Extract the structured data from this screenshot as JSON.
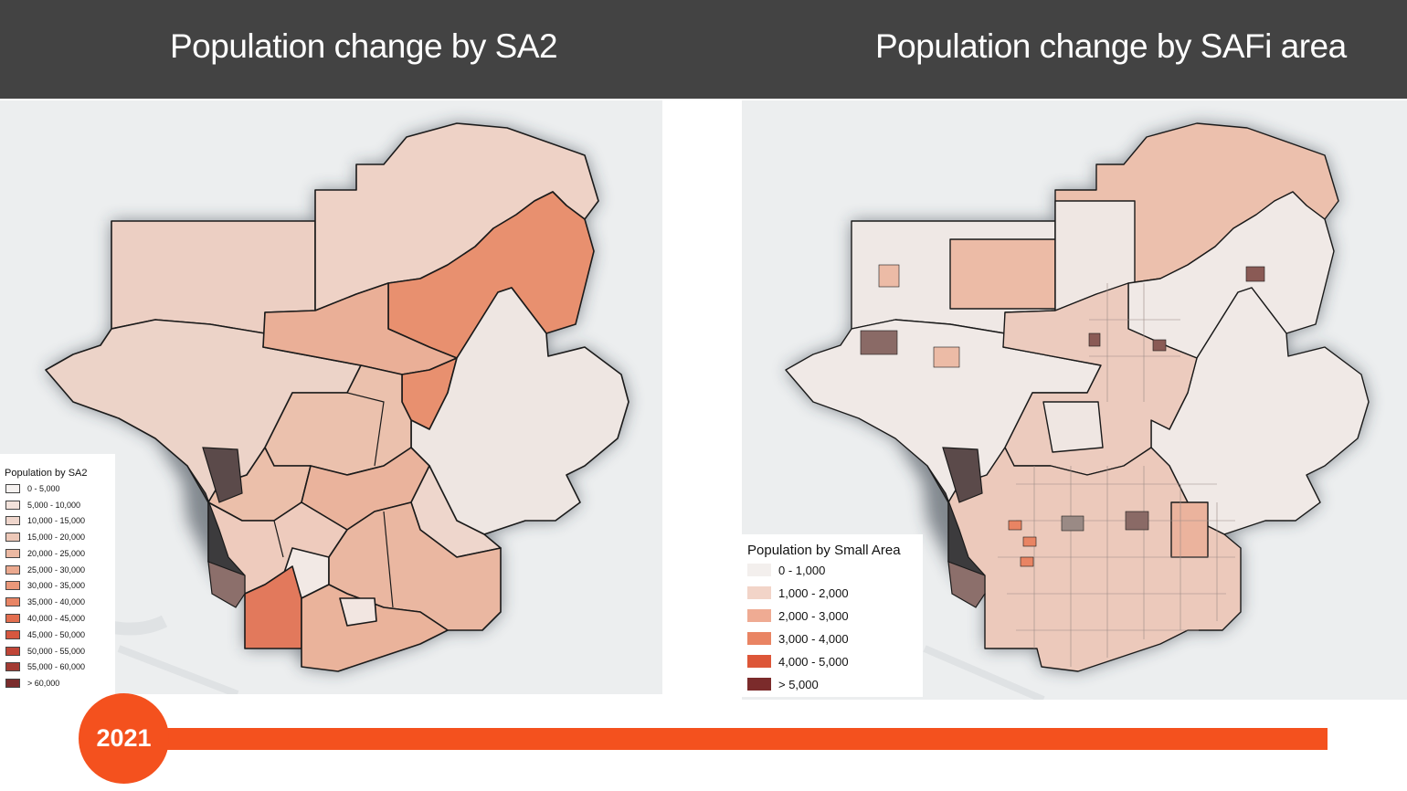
{
  "header": {
    "left_title": "Population change by SA2",
    "right_title": "Population change by SAFi area"
  },
  "left_map": {
    "legend": {
      "title": "Population by SA2",
      "items": [
        {
          "label": "0 - 5,000",
          "color": "#f6f2f0"
        },
        {
          "label": "5,000 - 10,000",
          "color": "#f2e2db"
        },
        {
          "label": "10,000 - 15,000",
          "color": "#efd6cc"
        },
        {
          "label": "15,000 - 20,000",
          "color": "#edc8b8"
        },
        {
          "label": "20,000 - 25,000",
          "color": "#ecb9a3"
        },
        {
          "label": "25,000 - 30,000",
          "color": "#eba98f"
        },
        {
          "label": "30,000 - 35,000",
          "color": "#ea987a"
        },
        {
          "label": "35,000 - 40,000",
          "color": "#e88565"
        },
        {
          "label": "40,000 - 45,000",
          "color": "#e36e4f"
        },
        {
          "label": "45,000 - 50,000",
          "color": "#d6573f"
        },
        {
          "label": "50,000 - 55,000",
          "color": "#c04537"
        },
        {
          "label": "55,000 - 60,000",
          "color": "#a33b33"
        },
        {
          "label": "> 60,000",
          "color": "#7a2c2c"
        }
      ]
    }
  },
  "right_map": {
    "legend": {
      "title": "Population by Small Area",
      "items": [
        {
          "label": "0 - 1,000",
          "color": "#f3efed"
        },
        {
          "label": "1,000 - 2,000",
          "color": "#f2d4c8"
        },
        {
          "label": "2,000 - 3,000",
          "color": "#efab93"
        },
        {
          "label": "3,000 - 4,000",
          "color": "#e98463"
        },
        {
          "label": "4,000 - 5,000",
          "color": "#dd5638"
        },
        {
          "label": "> 5,000",
          "color": "#7b2b2b"
        }
      ]
    }
  },
  "timeline": {
    "year": "2021",
    "color": "#f4511e"
  }
}
